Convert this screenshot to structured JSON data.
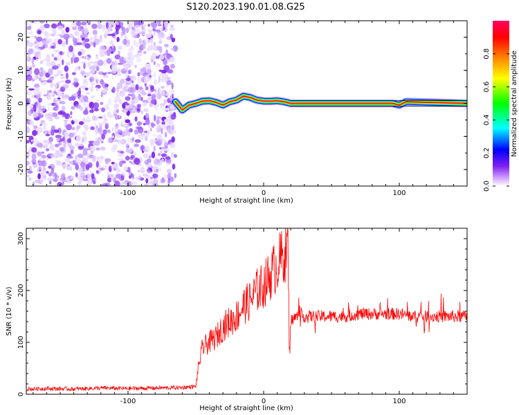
{
  "page_title": "S120.2023.190.01.08.G25",
  "chart_data": [
    {
      "type": "heatmap",
      "title": "S120.2023.190.01.08.G25",
      "xlabel": "Height of straight line (km)",
      "ylabel": "Frequency (Hz)",
      "xlim": [
        -175,
        150
      ],
      "ylim": [
        -25,
        25
      ],
      "x_ticks": [
        -100,
        0,
        100
      ],
      "y_ticks": [
        -20,
        -10,
        0,
        10,
        20
      ],
      "noise_region_x": [
        -175,
        -65
      ],
      "frequency_trace": {
        "x": [
          -65,
          -60,
          -55,
          -50,
          -45,
          -40,
          -35,
          -30,
          -25,
          -20,
          -15,
          -10,
          -5,
          0,
          5,
          10,
          15,
          20,
          40,
          60,
          80,
          90,
          95,
          100,
          105,
          150
        ],
        "y": [
          0.5,
          -2.0,
          -0.5,
          0.0,
          0.7,
          0.8,
          0.3,
          -0.5,
          0.5,
          1.0,
          2.2,
          1.8,
          1.0,
          0.7,
          0.7,
          0.8,
          0.5,
          0.0,
          0.0,
          0.0,
          0.0,
          0.0,
          0.0,
          -0.5,
          0.5,
          0.0
        ]
      },
      "colorbar": {
        "label": "Normalized spectral amplitude",
        "range": [
          0,
          1
        ],
        "ticks": [
          "0.0",
          "0.2",
          "0.4",
          "0.6",
          "0.8"
        ],
        "tick_values": [
          0,
          0.2,
          0.4,
          0.6,
          0.8
        ],
        "colors": [
          "#ffffff",
          "#d0a0ff",
          "#8020f0",
          "#0000ff",
          "#00ffff",
          "#00ff00",
          "#ffff00",
          "#ff8000",
          "#ff0000",
          "#ff0060"
        ]
      }
    },
    {
      "type": "line",
      "xlabel": "Height of straight line (km)",
      "ylabel": "SNR (10 * v/v)",
      "xlim": [
        -175,
        150
      ],
      "ylim": [
        0,
        320
      ],
      "x_ticks": [
        -100,
        0,
        100
      ],
      "y_ticks": [
        0,
        100,
        200,
        300
      ],
      "line_color": "#ff0000",
      "series": [
        {
          "x": [
            -175,
            -160,
            -140,
            -120,
            -100,
            -80,
            -60,
            -55,
            -50,
            -48,
            -45,
            -40,
            -35,
            -30,
            -25,
            -20,
            -15,
            -10,
            -5,
            0,
            5,
            10,
            15,
            18,
            19,
            20,
            21,
            25,
            30,
            40,
            50,
            60,
            70,
            80,
            90,
            100,
            110,
            120,
            130,
            140,
            150
          ],
          "y": [
            10,
            11,
            10,
            12,
            11,
            12,
            13,
            14,
            15,
            55,
            90,
            100,
            110,
            130,
            140,
            150,
            170,
            180,
            200,
            210,
            230,
            250,
            270,
            285,
            70,
            140,
            145,
            150,
            150,
            150,
            150,
            150,
            155,
            155,
            155,
            155,
            150,
            150,
            150,
            150,
            150
          ]
        }
      ]
    }
  ]
}
